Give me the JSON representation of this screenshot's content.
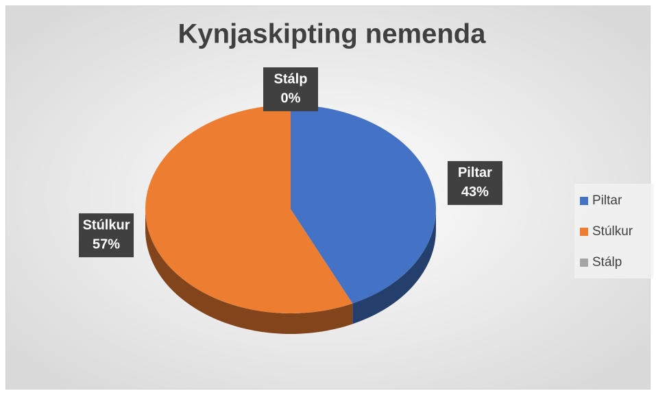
{
  "chart_data": {
    "type": "pie",
    "title": "Kynjaskipting nemenda",
    "categories": [
      "Piltar",
      "Stúlkur",
      "Stálp"
    ],
    "values": [
      43,
      57,
      0
    ],
    "value_labels": [
      "43%",
      "57%",
      "0%"
    ],
    "colors": [
      "#4472c4",
      "#ed7d31",
      "#a5a5a5"
    ],
    "legend": "right"
  }
}
